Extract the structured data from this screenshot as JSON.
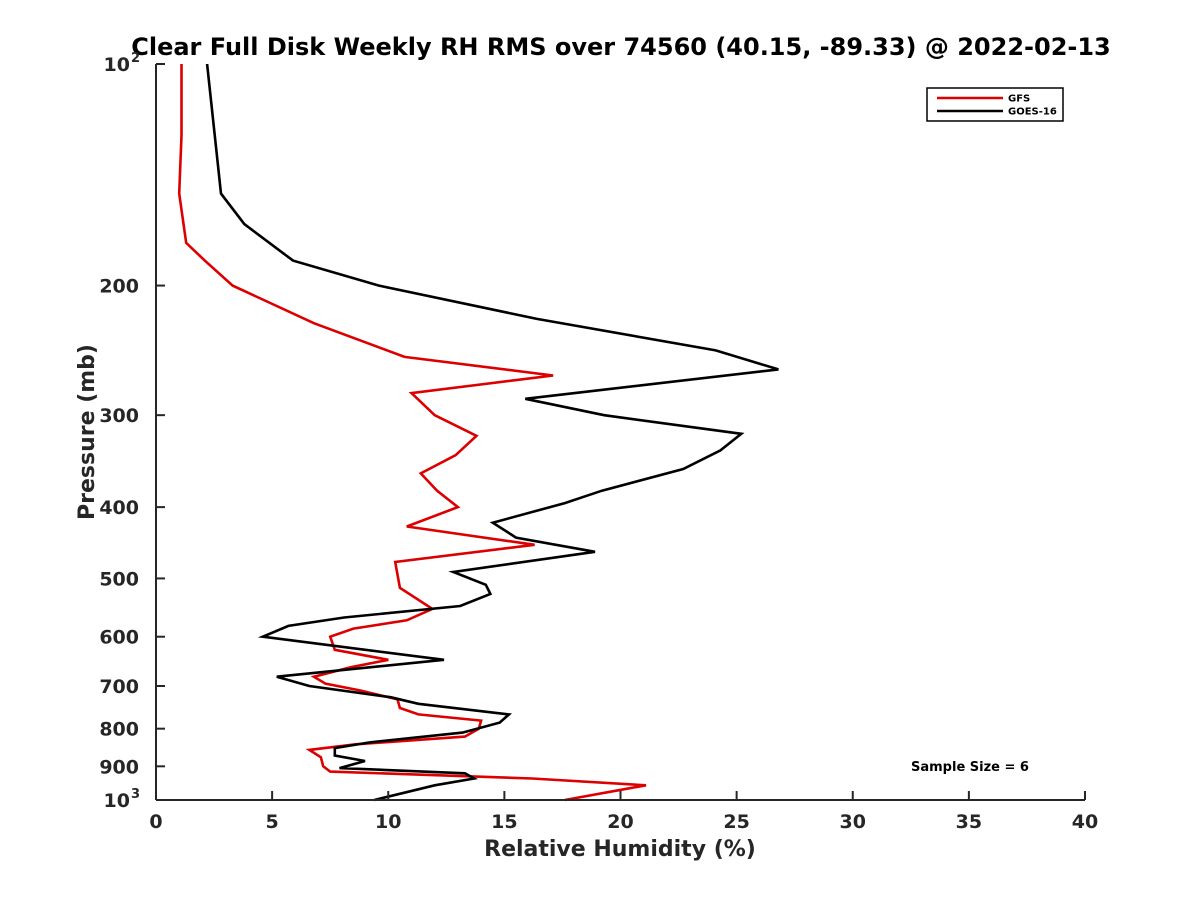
{
  "chart_data": {
    "type": "line",
    "title": "Clear Full Disk Weekly RH RMS over 74560 (40.15, -89.33) @ 2022-02-13",
    "xlabel": "Relative Humidity (%)",
    "ylabel": "Pressure (mb)",
    "xlim": [
      0,
      40
    ],
    "ylim": [
      100,
      1000
    ],
    "y_scale": "log",
    "y_reversed": true,
    "x_ticks": [
      "0",
      "5",
      "10",
      "15",
      "20",
      "25",
      "30",
      "35",
      "40"
    ],
    "y_ticks": [
      {
        "value": 100,
        "base": "10",
        "exp": "2"
      },
      {
        "value": 200,
        "label": "200"
      },
      {
        "value": 300,
        "label": "300"
      },
      {
        "value": 400,
        "label": "400"
      },
      {
        "value": 500,
        "label": "500"
      },
      {
        "value": 600,
        "label": "600"
      },
      {
        "value": 700,
        "label": "700"
      },
      {
        "value": 800,
        "label": "800"
      },
      {
        "value": 900,
        "label": "900"
      },
      {
        "value": 1000,
        "base": "10",
        "exp": "3"
      }
    ],
    "grid": false,
    "legend_position": "top-right",
    "annotation": "Sample Size = 6",
    "series": [
      {
        "name": "GFS",
        "color": "#dd0000",
        "points": [
          [
            1.1,
            100
          ],
          [
            1.1,
            125
          ],
          [
            1.0,
            150
          ],
          [
            1.3,
            175
          ],
          [
            2.1,
            185
          ],
          [
            3.3,
            200
          ],
          [
            6.8,
            225
          ],
          [
            10.7,
            250
          ],
          [
            17.1,
            265
          ],
          [
            11.0,
            280
          ],
          [
            12.0,
            300
          ],
          [
            13.8,
            320
          ],
          [
            12.9,
            340
          ],
          [
            11.4,
            360
          ],
          [
            12.1,
            380
          ],
          [
            13.0,
            400
          ],
          [
            10.8,
            425
          ],
          [
            16.3,
            450
          ],
          [
            10.3,
            475
          ],
          [
            10.5,
            515
          ],
          [
            11.9,
            550
          ],
          [
            10.8,
            570
          ],
          [
            8.5,
            585
          ],
          [
            7.5,
            600
          ],
          [
            7.7,
            625
          ],
          [
            10.0,
            645
          ],
          [
            8.4,
            660
          ],
          [
            6.8,
            680
          ],
          [
            7.3,
            695
          ],
          [
            8.8,
            710
          ],
          [
            10.4,
            730
          ],
          [
            10.5,
            750
          ],
          [
            11.3,
            765
          ],
          [
            14.0,
            780
          ],
          [
            13.9,
            800
          ],
          [
            13.3,
            820
          ],
          [
            8.6,
            840
          ],
          [
            6.6,
            855
          ],
          [
            7.1,
            875
          ],
          [
            7.2,
            900
          ],
          [
            7.5,
            915
          ],
          [
            16.2,
            935
          ],
          [
            21.1,
            955
          ],
          [
            19.9,
            970
          ],
          [
            17.6,
            1000
          ]
        ]
      },
      {
        "name": "GOES-16",
        "color": "#000000",
        "points": [
          [
            2.2,
            100
          ],
          [
            2.8,
            150
          ],
          [
            3.8,
            165
          ],
          [
            5.9,
            185
          ],
          [
            9.6,
            200
          ],
          [
            16.4,
            222
          ],
          [
            24.1,
            245
          ],
          [
            26.8,
            260
          ],
          [
            15.9,
            285
          ],
          [
            19.3,
            300
          ],
          [
            25.2,
            318
          ],
          [
            24.3,
            335
          ],
          [
            22.7,
            355
          ],
          [
            19.2,
            380
          ],
          [
            17.6,
            395
          ],
          [
            14.5,
            420
          ],
          [
            15.5,
            440
          ],
          [
            18.9,
            460
          ],
          [
            12.8,
            490
          ],
          [
            14.2,
            510
          ],
          [
            14.4,
            525
          ],
          [
            13.1,
            545
          ],
          [
            8.1,
            565
          ],
          [
            5.7,
            580
          ],
          [
            4.6,
            600
          ],
          [
            12.4,
            645
          ],
          [
            5.2,
            680
          ],
          [
            6.6,
            700
          ],
          [
            10.1,
            725
          ],
          [
            11.3,
            740
          ],
          [
            15.2,
            765
          ],
          [
            14.8,
            785
          ],
          [
            13.2,
            810
          ],
          [
            9.2,
            835
          ],
          [
            7.7,
            850
          ],
          [
            7.7,
            870
          ],
          [
            9.0,
            885
          ],
          [
            7.9,
            905
          ],
          [
            13.3,
            920
          ],
          [
            13.7,
            935
          ],
          [
            12.0,
            955
          ],
          [
            9.4,
            1000
          ]
        ]
      }
    ]
  }
}
